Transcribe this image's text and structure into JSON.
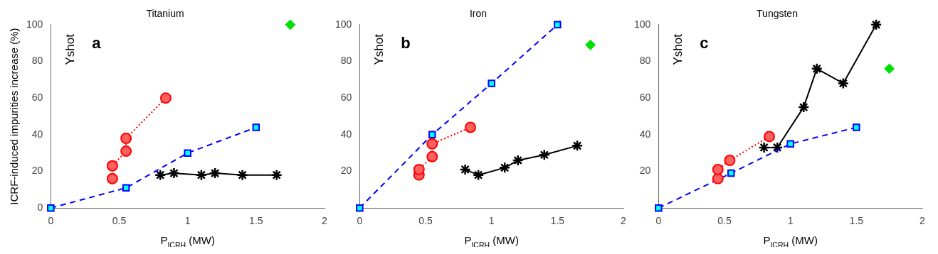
{
  "chart_data": [
    {
      "type": "line",
      "title": "Titanium",
      "xlabel": "P$_{ICRH}$ (MW)",
      "ylabel": "ICRF-induced impurities increase (%)",
      "xlim": [
        0,
        2
      ],
      "xticks": [
        0,
        0.5,
        1,
        1.5,
        2
      ],
      "ylim": [
        0,
        100
      ],
      "yticks": [
        0,
        20,
        40,
        60,
        80,
        100
      ],
      "grid": false,
      "legend": false,
      "annotations": [
        "Yshot",
        "a"
      ],
      "series": [
        {
          "type": "line",
          "color": "#ff0000",
          "marker": "circle",
          "line_style": "dotted",
          "x": [
            0.45,
            0.45,
            0.55,
            0.55,
            0.84
          ],
          "values": [
            16,
            23,
            31,
            38,
            60
          ]
        },
        {
          "type": "line",
          "color": "#0000ff",
          "marker": "square",
          "line_style": "dashed",
          "x": [
            0,
            0.55,
            1,
            1.5
          ],
          "values": [
            0,
            11,
            30,
            44
          ]
        },
        {
          "type": "line",
          "color": "#000000",
          "marker": "cross",
          "line_style": "solid",
          "x": [
            0.8,
            0.9,
            1.1,
            1.2,
            1.4,
            1.65
          ],
          "values": [
            18,
            19,
            18,
            19,
            18,
            18
          ]
        },
        {
          "type": "scatter",
          "color": "#00e000",
          "marker": "diamond",
          "x": [
            1.75
          ],
          "values": [
            100
          ]
        }
      ]
    },
    {
      "type": "line",
      "title": "Iron",
      "xlabel": "P$_{ICRH}$ (MW)",
      "xlim": [
        0,
        2
      ],
      "xticks": [
        0,
        0.5,
        1,
        1.5,
        2
      ],
      "ylim": [
        0,
        100
      ],
      "yticks": [
        20,
        40,
        60,
        80,
        100
      ],
      "grid": false,
      "legend": false,
      "annotations": [
        "Yshot",
        "b"
      ],
      "series": [
        {
          "type": "line",
          "color": "#ff0000",
          "marker": "circle",
          "line_style": "dotted",
          "x": [
            0.45,
            0.45,
            0.55,
            0.55,
            0.84
          ],
          "values": [
            18,
            21,
            28,
            35,
            44
          ]
        },
        {
          "type": "line",
          "color": "#0000ff",
          "marker": "square",
          "line_style": "dashed",
          "x": [
            0,
            0.55,
            1,
            1.5
          ],
          "values": [
            0,
            40,
            68,
            100
          ]
        },
        {
          "type": "line",
          "color": "#000000",
          "marker": "cross",
          "line_style": "solid",
          "x": [
            0.8,
            0.9,
            1.1,
            1.2,
            1.4,
            1.65
          ],
          "values": [
            21,
            18,
            22,
            26,
            29,
            34
          ]
        },
        {
          "type": "scatter",
          "color": "#00e000",
          "marker": "diamond",
          "x": [
            1.75
          ],
          "values": [
            89
          ]
        }
      ]
    },
    {
      "type": "line",
      "title": "Tungsten",
      "xlabel": "P$_{ICRH}$ (MW)",
      "xlim": [
        0,
        2
      ],
      "xticks": [
        0,
        0.5,
        1,
        1.5,
        2
      ],
      "ylim": [
        0,
        100
      ],
      "yticks": [
        20,
        40,
        60,
        80,
        100
      ],
      "grid": false,
      "legend": false,
      "annotations": [
        "Yshot",
        "c"
      ],
      "series": [
        {
          "type": "line",
          "color": "#ff0000",
          "marker": "circle",
          "line_style": "dotted",
          "x": [
            0.45,
            0.45,
            0.54,
            0.84
          ],
          "values": [
            16,
            21,
            26,
            39
          ]
        },
        {
          "type": "line",
          "color": "#0000ff",
          "marker": "square",
          "line_style": "dashed",
          "x": [
            0,
            0.55,
            1,
            1.5
          ],
          "values": [
            0,
            19,
            35,
            44
          ]
        },
        {
          "type": "line",
          "color": "#000000",
          "marker": "cross",
          "line_style": "solid",
          "x": [
            0.8,
            0.9,
            1.1,
            1.2,
            1.4,
            1.65
          ],
          "values": [
            33,
            33,
            55,
            76,
            68,
            100
          ]
        },
        {
          "type": "scatter",
          "color": "#00e000",
          "marker": "diamond",
          "x": [
            1.75
          ],
          "values": [
            76
          ]
        }
      ]
    }
  ]
}
